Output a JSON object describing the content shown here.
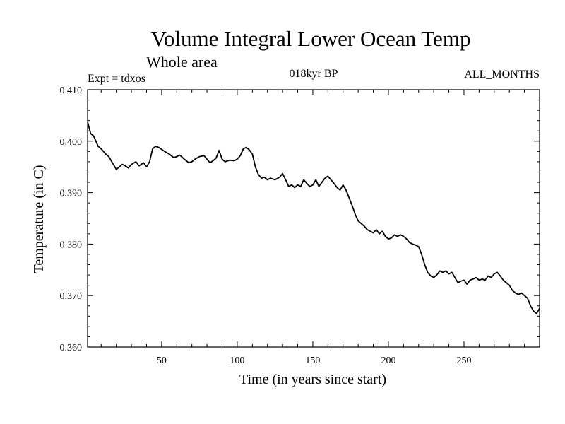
{
  "chart_data": {
    "type": "line",
    "title": "Volume Integral Lower Ocean Temp",
    "subtitle": "Whole area",
    "header_left": "Expt = tdxos",
    "header_center": "018kyr BP",
    "header_right": "ALL_MONTHS",
    "xlabel": "Time (in years since start)",
    "ylabel": "Temperature (in C)",
    "xlim": [
      1,
      300
    ],
    "ylim": [
      0.36,
      0.41
    ],
    "xticks": [
      50,
      100,
      150,
      200,
      250
    ],
    "xtick_labels": [
      "50",
      "100",
      "150",
      "200",
      "250"
    ],
    "yticks": [
      0.36,
      0.37,
      0.38,
      0.39,
      0.4,
      0.41
    ],
    "ytick_labels": [
      "0.360",
      "0.370",
      "0.380",
      "0.390",
      "0.400",
      "0.410"
    ],
    "grid": false,
    "series": [
      {
        "color": "#000000",
        "x": [
          1,
          3,
          5,
          8,
          10,
          13,
          15,
          18,
          20,
          22,
          24,
          26,
          28,
          30,
          33,
          35,
          38,
          40,
          42,
          44,
          46,
          48,
          50,
          52,
          55,
          58,
          60,
          62,
          65,
          68,
          70,
          72,
          75,
          78,
          80,
          82,
          84,
          86,
          88,
          90,
          92,
          95,
          98,
          100,
          102,
          104,
          106,
          108,
          110,
          112,
          114,
          116,
          118,
          120,
          122,
          125,
          128,
          130,
          132,
          134,
          136,
          138,
          140,
          142,
          144,
          146,
          148,
          150,
          152,
          154,
          156,
          158,
          160,
          162,
          164,
          166,
          168,
          170,
          172,
          174,
          176,
          178,
          180,
          182,
          184,
          186,
          188,
          190,
          192,
          194,
          196,
          198,
          200,
          202,
          204,
          206,
          208,
          210,
          212,
          214,
          216,
          218,
          220,
          222,
          224,
          226,
          228,
          230,
          232,
          234,
          236,
          238,
          240,
          242,
          244,
          246,
          248,
          250,
          252,
          254,
          256,
          258,
          260,
          262,
          264,
          266,
          268,
          270,
          272,
          274,
          276,
          278,
          280,
          282,
          284,
          286,
          288,
          290,
          292,
          294,
          296,
          298,
          300
        ],
        "y": [
          0.4038,
          0.4015,
          0.401,
          0.399,
          0.3985,
          0.3975,
          0.397,
          0.3955,
          0.3945,
          0.395,
          0.3955,
          0.3952,
          0.3948,
          0.3955,
          0.396,
          0.3952,
          0.3958,
          0.395,
          0.396,
          0.3985,
          0.399,
          0.3988,
          0.3984,
          0.398,
          0.3975,
          0.3968,
          0.397,
          0.3973,
          0.3965,
          0.3958,
          0.396,
          0.3965,
          0.397,
          0.3972,
          0.3965,
          0.3958,
          0.3962,
          0.3967,
          0.3982,
          0.3965,
          0.396,
          0.3963,
          0.3962,
          0.3965,
          0.3972,
          0.3985,
          0.3988,
          0.3983,
          0.3975,
          0.395,
          0.3935,
          0.3928,
          0.393,
          0.3925,
          0.3928,
          0.3925,
          0.393,
          0.3937,
          0.3925,
          0.3912,
          0.3915,
          0.391,
          0.3915,
          0.3912,
          0.3925,
          0.3918,
          0.3912,
          0.3915,
          0.3925,
          0.3912,
          0.392,
          0.3928,
          0.3932,
          0.3925,
          0.3918,
          0.391,
          0.3905,
          0.3915,
          0.3905,
          0.389,
          0.3875,
          0.3858,
          0.3845,
          0.384,
          0.3835,
          0.3828,
          0.3825,
          0.3822,
          0.3828,
          0.382,
          0.3825,
          0.3815,
          0.381,
          0.3812,
          0.3818,
          0.3815,
          0.3818,
          0.3815,
          0.381,
          0.3803,
          0.38,
          0.3798,
          0.3795,
          0.378,
          0.376,
          0.3745,
          0.3738,
          0.3735,
          0.374,
          0.3748,
          0.3745,
          0.3748,
          0.3742,
          0.3745,
          0.3735,
          0.3725,
          0.3728,
          0.373,
          0.3722,
          0.373,
          0.3732,
          0.3735,
          0.373,
          0.3732,
          0.373,
          0.3738,
          0.3735,
          0.3742,
          0.3745,
          0.3738,
          0.373,
          0.3725,
          0.372,
          0.371,
          0.3705,
          0.3702,
          0.3705,
          0.37,
          0.3695,
          0.368,
          0.367,
          0.3665,
          0.3675
        ]
      }
    ]
  }
}
